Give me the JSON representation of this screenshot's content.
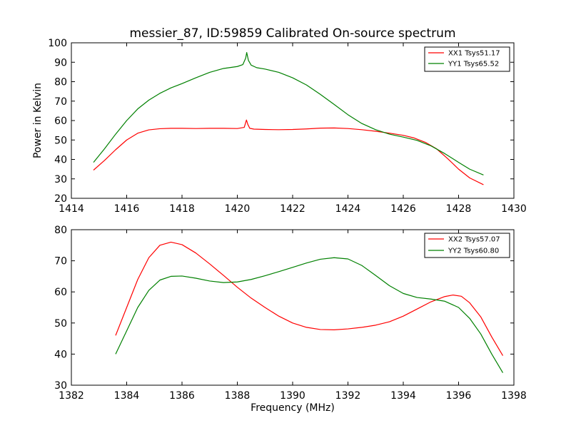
{
  "figure": {
    "title": "messier_87, ID:59859 Calibrated On-source spectrum",
    "xlabel": "Frequency (MHz)",
    "ylabel": "Power in Kelvin"
  },
  "colors": {
    "xx": "#ff0000",
    "yy": "#008000",
    "axes": "#000000"
  },
  "chart_data": [
    {
      "type": "line",
      "title": "messier_87, ID:59859 Calibrated On-source spectrum",
      "xlabel": "",
      "ylabel": "Power in Kelvin",
      "xlim": [
        1414,
        1430
      ],
      "ylim": [
        20,
        100
      ],
      "xticks": [
        1414,
        1416,
        1418,
        1420,
        1422,
        1424,
        1426,
        1428,
        1430
      ],
      "yticks": [
        20,
        30,
        40,
        50,
        60,
        70,
        80,
        90,
        100
      ],
      "grid": false,
      "legend": "top-right",
      "series": [
        {
          "name": "XX1 Tsys51.17",
          "color": "#ff0000",
          "x": [
            1414.8,
            1415.2,
            1415.6,
            1416.0,
            1416.4,
            1416.8,
            1417.2,
            1417.6,
            1418.0,
            1418.5,
            1419.0,
            1419.5,
            1420.0,
            1420.25,
            1420.33,
            1420.38,
            1420.45,
            1420.6,
            1421.0,
            1421.5,
            1422.0,
            1422.5,
            1423.0,
            1423.5,
            1424.0,
            1424.5,
            1425.0,
            1425.5,
            1426.0,
            1426.4,
            1426.8,
            1427.2,
            1427.6,
            1428.0,
            1428.4,
            1428.9
          ],
          "y": [
            34.5,
            39.5,
            45.0,
            50.0,
            53.5,
            55.2,
            55.8,
            56.0,
            56.0,
            55.9,
            56.0,
            56.0,
            55.9,
            56.5,
            60.3,
            58.0,
            56.0,
            55.6,
            55.4,
            55.3,
            55.4,
            55.7,
            56.1,
            56.2,
            55.9,
            55.3,
            54.5,
            53.5,
            52.4,
            51.0,
            48.8,
            45.5,
            40.5,
            35.0,
            30.5,
            27.0
          ]
        },
        {
          "name": "YY1 Tsys65.52",
          "color": "#008000",
          "x": [
            1414.8,
            1415.2,
            1415.6,
            1416.0,
            1416.4,
            1416.8,
            1417.2,
            1417.6,
            1418.0,
            1418.5,
            1419.0,
            1419.5,
            1420.0,
            1420.2,
            1420.3,
            1420.34,
            1420.4,
            1420.5,
            1420.7,
            1421.0,
            1421.5,
            1422.0,
            1422.5,
            1423.0,
            1423.5,
            1424.0,
            1424.5,
            1425.0,
            1425.5,
            1426.0,
            1426.5,
            1427.0,
            1427.5,
            1428.0,
            1428.4,
            1428.9
          ],
          "y": [
            38.5,
            45.5,
            53.0,
            60.0,
            66.0,
            70.5,
            74.0,
            76.8,
            79.0,
            82.0,
            84.8,
            86.8,
            87.8,
            88.8,
            92.0,
            95.0,
            91.0,
            88.5,
            87.2,
            86.5,
            84.8,
            82.0,
            78.3,
            73.5,
            68.3,
            63.0,
            58.5,
            55.3,
            53.0,
            51.5,
            49.8,
            47.0,
            43.0,
            38.5,
            35.0,
            32.0
          ]
        }
      ]
    },
    {
      "type": "line",
      "title": "",
      "xlabel": "Frequency (MHz)",
      "ylabel": "",
      "xlim": [
        1382,
        1398
      ],
      "ylim": [
        30,
        80
      ],
      "xticks": [
        1382,
        1384,
        1386,
        1388,
        1390,
        1392,
        1394,
        1396,
        1398
      ],
      "yticks": [
        30,
        40,
        50,
        60,
        70,
        80
      ],
      "grid": false,
      "legend": "top-right",
      "series": [
        {
          "name": "XX2 Tsys57.07",
          "color": "#ff0000",
          "x": [
            1383.6,
            1384.0,
            1384.4,
            1384.8,
            1385.2,
            1385.6,
            1386.0,
            1386.5,
            1387.0,
            1387.5,
            1388.0,
            1388.5,
            1389.0,
            1389.5,
            1390.0,
            1390.5,
            1391.0,
            1391.5,
            1392.0,
            1392.5,
            1393.0,
            1393.5,
            1394.0,
            1394.5,
            1395.0,
            1395.5,
            1395.8,
            1396.1,
            1396.4,
            1396.8,
            1397.2,
            1397.6
          ],
          "y": [
            46.0,
            55.0,
            64.0,
            71.0,
            75.0,
            76.0,
            75.2,
            72.5,
            69.0,
            65.3,
            61.5,
            58.0,
            55.0,
            52.2,
            50.0,
            48.6,
            47.9,
            47.8,
            48.1,
            48.6,
            49.3,
            50.4,
            52.2,
            54.5,
            56.8,
            58.5,
            59.0,
            58.6,
            56.5,
            52.0,
            45.5,
            39.5
          ]
        },
        {
          "name": "YY2 Tsys60.80",
          "color": "#008000",
          "x": [
            1383.6,
            1384.0,
            1384.4,
            1384.8,
            1385.2,
            1385.6,
            1386.0,
            1386.5,
            1387.0,
            1387.5,
            1388.0,
            1388.5,
            1389.0,
            1389.5,
            1390.0,
            1390.5,
            1391.0,
            1391.5,
            1392.0,
            1392.5,
            1393.0,
            1393.5,
            1394.0,
            1394.5,
            1395.0,
            1395.5,
            1396.0,
            1396.4,
            1396.8,
            1397.2,
            1397.6
          ],
          "y": [
            40.0,
            47.5,
            55.0,
            60.5,
            63.8,
            65.0,
            65.1,
            64.4,
            63.5,
            63.0,
            63.2,
            64.0,
            65.2,
            66.5,
            67.9,
            69.3,
            70.5,
            71.0,
            70.6,
            68.5,
            65.3,
            62.0,
            59.5,
            58.2,
            57.7,
            57.0,
            55.0,
            51.5,
            46.5,
            40.0,
            34.0
          ]
        }
      ]
    }
  ]
}
